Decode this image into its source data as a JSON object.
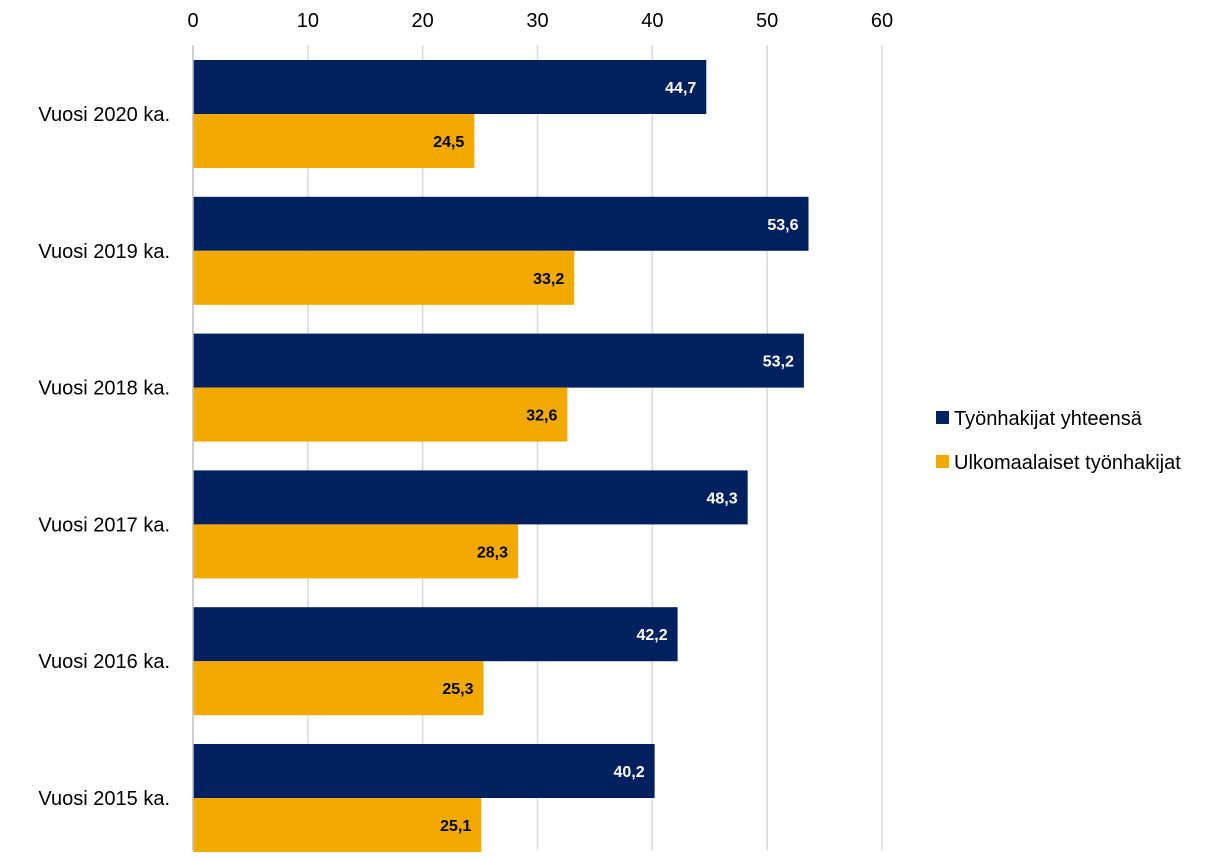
{
  "chart_data": {
    "type": "bar",
    "orientation": "horizontal",
    "categories": [
      "Vuosi 2020 ka.",
      "Vuosi 2019 ka.",
      "Vuosi 2018 ka.",
      "Vuosi 2017 ka.",
      "Vuosi 2016 ka.",
      "Vuosi 2015 ka."
    ],
    "series": [
      {
        "name": "Työnhakijat yhteensä",
        "color": "#002060",
        "label_color": "#ffffff",
        "values": [
          44.7,
          53.6,
          53.2,
          48.3,
          42.2,
          40.2
        ],
        "labels": [
          "44,7",
          "53,6",
          "53,2",
          "48,3",
          "42,2",
          "40,2"
        ]
      },
      {
        "name": "Ulkomaalaiset työnhakijat",
        "color": "#F2A900",
        "label_color": "#000000",
        "values": [
          24.5,
          33.2,
          32.6,
          28.3,
          25.3,
          25.1
        ],
        "labels": [
          "24,5",
          "33,2",
          "32,6",
          "28,3",
          "25,3",
          "25,1"
        ]
      }
    ],
    "x_ticks": [
      "0",
      "10",
      "20",
      "30",
      "40",
      "50",
      "60"
    ],
    "xlim": [
      0,
      60
    ],
    "axis_position": "top",
    "grid": true,
    "legend": "right"
  }
}
